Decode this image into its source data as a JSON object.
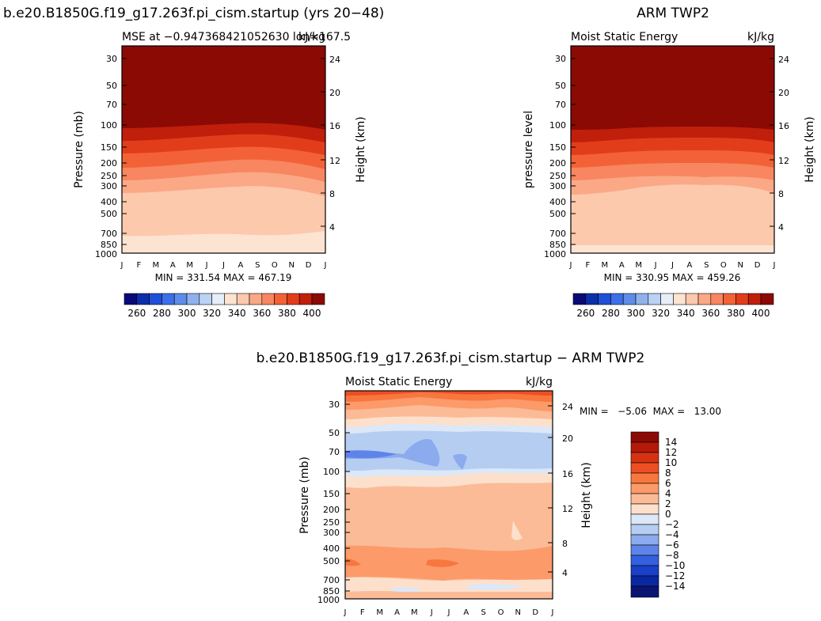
{
  "chart_data": [
    {
      "type": "heatmap",
      "title": "b.e20.B1850G.f19_g17.263f.pi_cism.startup (yrs 20−48)",
      "subtitle_left": "MSE at −0.947368421052630 lon=167.5",
      "subtitle_right": "kJ/kg",
      "ylabel": "Pressure (mb)",
      "ylabel_right": "Height (km)",
      "x_ticks": [
        "J",
        "F",
        "M",
        "A",
        "M",
        "J",
        "J",
        "A",
        "S",
        "O",
        "N",
        "D",
        "J"
      ],
      "y_ticks": [
        "30",
        "50",
        "70",
        "100",
        "150",
        "200",
        "250",
        "300",
        "400",
        "500",
        "700",
        "850",
        "1000"
      ],
      "height_ticks": [
        "24",
        "20",
        "16",
        "12",
        "8",
        "4"
      ],
      "min_max": "MIN = 331.54  MAX = 467.19",
      "colorbar_ticks": [
        "260",
        "280",
        "300",
        "320",
        "340",
        "360",
        "380",
        "400"
      ],
      "colors": [
        "#0a0a78",
        "#0b2fa8",
        "#1e4fd8",
        "#3b70e8",
        "#5e8de8",
        "#8fb2ee",
        "#bcd2f4",
        "#e6eefa",
        "#fde4d2",
        "#fcc9ad",
        "#fba886",
        "#f88660",
        "#f36236",
        "#e23d1a",
        "#c01f0c",
        "#8b0a04"
      ]
    },
    {
      "type": "heatmap",
      "title": "ARM TWP2",
      "subtitle_left": "Moist Static Energy",
      "subtitle_right": "kJ/kg",
      "ylabel": "pressure level",
      "ylabel_right": "Height (km)",
      "x_ticks": [
        "J",
        "F",
        "M",
        "A",
        "M",
        "J",
        "J",
        "A",
        "S",
        "O",
        "N",
        "D",
        "J"
      ],
      "y_ticks": [
        "30",
        "50",
        "70",
        "100",
        "150",
        "200",
        "250",
        "300",
        "400",
        "500",
        "700",
        "850",
        "1000"
      ],
      "height_ticks": [
        "24",
        "20",
        "16",
        "12",
        "8",
        "4"
      ],
      "min_max": "MIN = 330.95  MAX = 459.26",
      "colorbar_ticks": [
        "260",
        "280",
        "300",
        "320",
        "340",
        "360",
        "380",
        "400"
      ],
      "colors": [
        "#0a0a78",
        "#0b2fa8",
        "#1e4fd8",
        "#3b70e8",
        "#5e8de8",
        "#8fb2ee",
        "#bcd2f4",
        "#e6eefa",
        "#fde4d2",
        "#fcc9ad",
        "#fba886",
        "#f88660",
        "#f36236",
        "#e23d1a",
        "#c01f0c",
        "#8b0a04"
      ]
    },
    {
      "type": "heatmap",
      "title": "b.e20.B1850G.f19_g17.263f.pi_cism.startup − ARM TWP2",
      "subtitle_left": "Moist Static Energy",
      "subtitle_right": "kJ/kg",
      "ylabel": "Pressure (mb)",
      "ylabel_right": "Height (km)",
      "x_ticks": [
        "J",
        "F",
        "M",
        "A",
        "M",
        "J",
        "J",
        "A",
        "S",
        "O",
        "N",
        "D",
        "J"
      ],
      "y_ticks": [
        "30",
        "50",
        "70",
        "100",
        "150",
        "200",
        "250",
        "300",
        "400",
        "500",
        "700",
        "850",
        "1000"
      ],
      "height_ticks": [
        "24",
        "20",
        "16",
        "12",
        "8",
        "4"
      ],
      "min_max": "MIN =   −5.06  MAX =   13.00",
      "colorbar_ticks": [
        "14",
        "12",
        "10",
        "8",
        "6",
        "4",
        "2",
        "0",
        "−2",
        "−4",
        "−6",
        "−8",
        "−10",
        "−12",
        "−14"
      ],
      "colors": [
        "#8b0a04",
        "#b5190a",
        "#d63212",
        "#ed4e24",
        "#f8773f",
        "#fc9a6a",
        "#fcbb97",
        "#fde0cc",
        "#dce8f8",
        "#b6cdf2",
        "#8cabee",
        "#5e84ea",
        "#3360e0",
        "#1a3fc8",
        "#0a27a0",
        "#0a1472"
      ]
    }
  ]
}
